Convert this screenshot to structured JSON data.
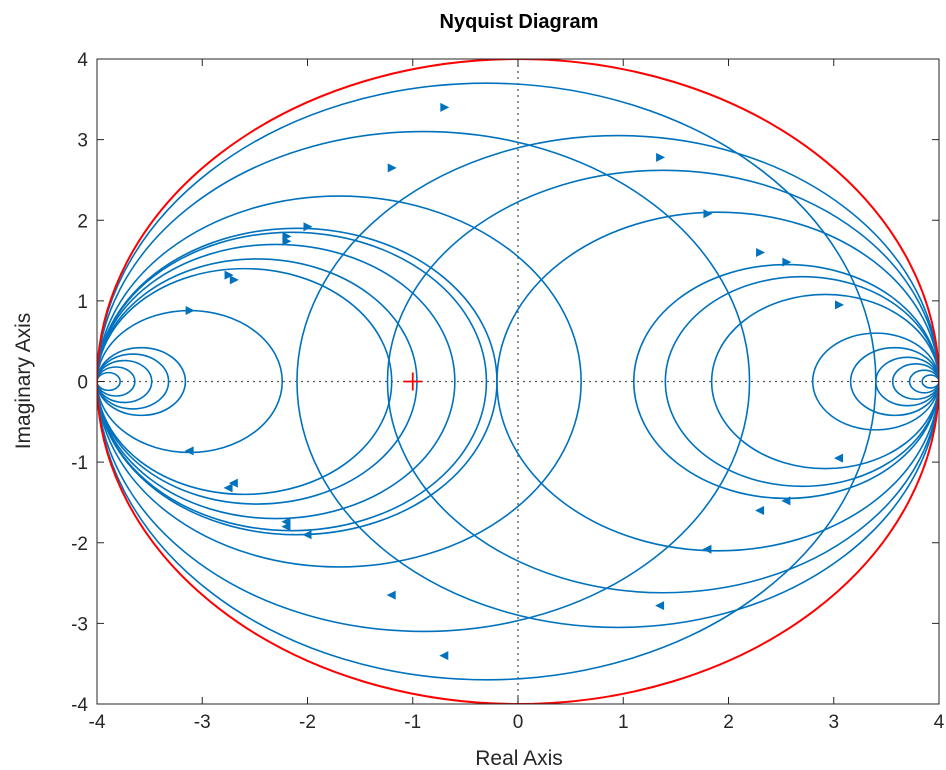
{
  "chart_data": {
    "type": "line",
    "title": "Nyquist Diagram",
    "xlabel": "Real Axis",
    "ylabel": "Imaginary Axis",
    "xlim": [
      -4,
      4
    ],
    "ylim": [
      -4,
      4
    ],
    "xticks": [
      -4,
      -3,
      -2,
      -1,
      0,
      1,
      2,
      3,
      4
    ],
    "yticks": [
      -4,
      -3,
      -2,
      -1,
      0,
      1,
      2,
      3,
      4
    ],
    "grid": false,
    "critical_point": [
      -1,
      0
    ],
    "boundary_circle": {
      "center": [
        0,
        0
      ],
      "radius": 4
    },
    "colors": {
      "curves": "#0072BD",
      "boundary": "#FF0000",
      "critical_point": "#FF0000",
      "reference_lines": "#555555"
    },
    "curves": [
      {
        "center": [
          -3.58,
          0
        ],
        "radius": 0.42
      },
      {
        "center": [
          -3.66,
          0
        ],
        "radius": 0.34
      },
      {
        "center": [
          -3.74,
          0
        ],
        "radius": 0.26
      },
      {
        "center": [
          -3.82,
          0
        ],
        "radius": 0.18
      },
      {
        "center": [
          -3.89,
          0
        ],
        "radius": 0.11
      },
      {
        "center": [
          -3.12,
          0
        ],
        "radius": 0.88
      },
      {
        "center": [
          -2.6,
          0
        ],
        "radius": 1.4
      },
      {
        "center": [
          -2.48,
          0
        ],
        "radius": 1.52
      },
      {
        "center": [
          -2.3,
          0
        ],
        "radius": 1.7
      },
      {
        "center": [
          -2.15,
          0
        ],
        "radius": 1.85
      },
      {
        "center": [
          -2.1,
          0
        ],
        "radius": 1.9
      },
      {
        "center": [
          -1.7,
          0
        ],
        "radius": 2.3
      },
      {
        "center": [
          -0.9,
          0
        ],
        "radius": 3.1
      },
      {
        "center": [
          -0.3,
          0
        ],
        "radius": 3.7
      },
      {
        "center": [
          1.38,
          0
        ],
        "radius": 2.62
      },
      {
        "center": [
          0.95,
          0
        ],
        "radius": 3.05
      },
      {
        "center": [
          1.9,
          0
        ],
        "radius": 2.1
      },
      {
        "center": [
          2.55,
          0
        ],
        "radius": 1.45
      },
      {
        "center": [
          2.7,
          0
        ],
        "radius": 1.3
      },
      {
        "center": [
          2.92,
          0
        ],
        "radius": 1.08
      },
      {
        "center": [
          3.4,
          0
        ],
        "radius": 0.6
      },
      {
        "center": [
          3.58,
          0
        ],
        "radius": 0.42
      },
      {
        "center": [
          3.7,
          0
        ],
        "radius": 0.3
      },
      {
        "center": [
          3.78,
          0
        ],
        "radius": 0.22
      },
      {
        "center": [
          3.86,
          0
        ],
        "radius": 0.14
      },
      {
        "center": [
          3.92,
          0
        ],
        "radius": 0.08
      }
    ],
    "arrows": [
      {
        "x": -0.7,
        "y": 3.4,
        "dir": "right"
      },
      {
        "x": -1.2,
        "y": 2.65,
        "dir": "right"
      },
      {
        "x": -2.0,
        "y": 1.92,
        "dir": "right"
      },
      {
        "x": -2.2,
        "y": 1.8,
        "dir": "right"
      },
      {
        "x": -2.2,
        "y": 1.74,
        "dir": "right"
      },
      {
        "x": -2.75,
        "y": 1.32,
        "dir": "right"
      },
      {
        "x": -2.7,
        "y": 1.26,
        "dir": "right"
      },
      {
        "x": -3.12,
        "y": 0.88,
        "dir": "right"
      },
      {
        "x": 1.35,
        "y": 2.78,
        "dir": "right"
      },
      {
        "x": 1.8,
        "y": 2.08,
        "dir": "right"
      },
      {
        "x": 2.3,
        "y": 1.6,
        "dir": "right"
      },
      {
        "x": 2.55,
        "y": 1.48,
        "dir": "right"
      },
      {
        "x": 3.05,
        "y": 0.95,
        "dir": "right"
      },
      {
        "x": -0.7,
        "y": -3.4,
        "dir": "left"
      },
      {
        "x": -1.2,
        "y": -2.65,
        "dir": "left"
      },
      {
        "x": -2.0,
        "y": -1.9,
        "dir": "left"
      },
      {
        "x": -2.2,
        "y": -1.8,
        "dir": "left"
      },
      {
        "x": -2.2,
        "y": -1.74,
        "dir": "left"
      },
      {
        "x": -2.75,
        "y": -1.32,
        "dir": "left"
      },
      {
        "x": -2.7,
        "y": -1.26,
        "dir": "left"
      },
      {
        "x": -3.12,
        "y": -0.86,
        "dir": "left"
      },
      {
        "x": 1.35,
        "y": -2.78,
        "dir": "left"
      },
      {
        "x": 1.8,
        "y": -2.08,
        "dir": "left"
      },
      {
        "x": 2.3,
        "y": -1.6,
        "dir": "left"
      },
      {
        "x": 2.55,
        "y": -1.48,
        "dir": "left"
      },
      {
        "x": 3.05,
        "y": -0.95,
        "dir": "left"
      }
    ]
  }
}
